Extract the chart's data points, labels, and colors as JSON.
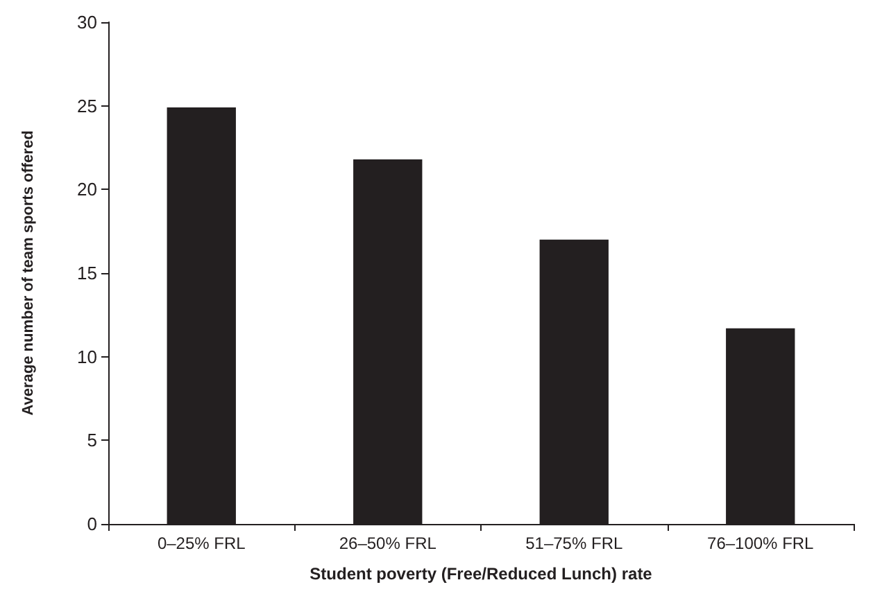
{
  "chart_data": {
    "type": "bar",
    "xlabel": "Student poverty (Free/Reduced Lunch) rate",
    "ylabel": "Average number of team sports offered",
    "categories": [
      "0–25% FRL",
      "26–50% FRL",
      "51–75% FRL",
      "76–100% FRL"
    ],
    "values": [
      24.9,
      21.8,
      17.0,
      11.7
    ],
    "color": "#231f20",
    "ylim": [
      0,
      30
    ],
    "yticks": [
      0,
      5,
      10,
      15,
      20,
      25,
      30
    ],
    "grid": false
  }
}
